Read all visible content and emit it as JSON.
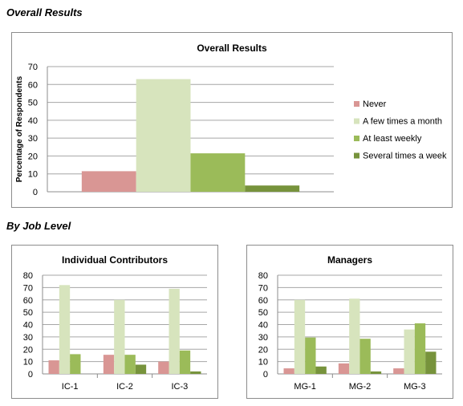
{
  "headings": {
    "overall": "Overall Results",
    "by_job_level": "By Job Level"
  },
  "colors": {
    "never": "#d99694",
    "few_times_month": "#d7e4bd",
    "at_least_weekly": "#9bbb59",
    "several_times_week": "#77933c",
    "gridline": "#a6a6a6",
    "axis": "#8c8c8c"
  },
  "legend": [
    {
      "label": "Never",
      "color": "#d99694"
    },
    {
      "label": "A few times a month",
      "color": "#d7e4bd"
    },
    {
      "label": "At least weekly",
      "color": "#9bbb59"
    },
    {
      "label": "Several times a week",
      "color": "#77933c"
    }
  ],
  "chart_data": [
    {
      "type": "bar",
      "title": "Overall Results",
      "ylabel": "Percentage of Respondents",
      "xlabel": "",
      "categories": [
        ""
      ],
      "series": [
        {
          "name": "Never",
          "values": [
            11.5
          ]
        },
        {
          "name": "A few times a month",
          "values": [
            63
          ]
        },
        {
          "name": "At least weekly",
          "values": [
            21.5
          ]
        },
        {
          "name": "Several times a week",
          "values": [
            3.5
          ]
        }
      ],
      "ylim": [
        0,
        70
      ],
      "yticks": [
        0,
        10,
        20,
        30,
        40,
        50,
        60,
        70
      ],
      "grid": true,
      "legend": "right"
    },
    {
      "type": "bar",
      "title": "Individual Contributors",
      "ylabel": "",
      "xlabel": "",
      "categories": [
        "IC-1",
        "IC-2",
        "IC-3"
      ],
      "series": [
        {
          "name": "Never",
          "values": [
            11,
            15.5,
            10
          ]
        },
        {
          "name": "A few times a month",
          "values": [
            72,
            60,
            69
          ]
        },
        {
          "name": "At least weekly",
          "values": [
            16,
            15.5,
            19
          ]
        },
        {
          "name": "Several times a week",
          "values": [
            0,
            7.5,
            2
          ]
        }
      ],
      "ylim": [
        0,
        80
      ],
      "yticks": [
        0,
        10,
        20,
        30,
        40,
        50,
        60,
        70,
        80
      ],
      "grid": true
    },
    {
      "type": "bar",
      "title": "Managers",
      "ylabel": "",
      "xlabel": "",
      "categories": [
        "MG-1",
        "MG-2",
        "MG-3"
      ],
      "series": [
        {
          "name": "Never",
          "values": [
            4.5,
            8.5,
            4.5
          ]
        },
        {
          "name": "A few times a month",
          "values": [
            60,
            61,
            36
          ]
        },
        {
          "name": "At least weekly",
          "values": [
            29.5,
            28.5,
            41
          ]
        },
        {
          "name": "Several times a week",
          "values": [
            6,
            2,
            18
          ]
        }
      ],
      "ylim": [
        0,
        80
      ],
      "yticks": [
        0,
        10,
        20,
        30,
        40,
        50,
        60,
        70,
        80
      ],
      "grid": true
    }
  ]
}
